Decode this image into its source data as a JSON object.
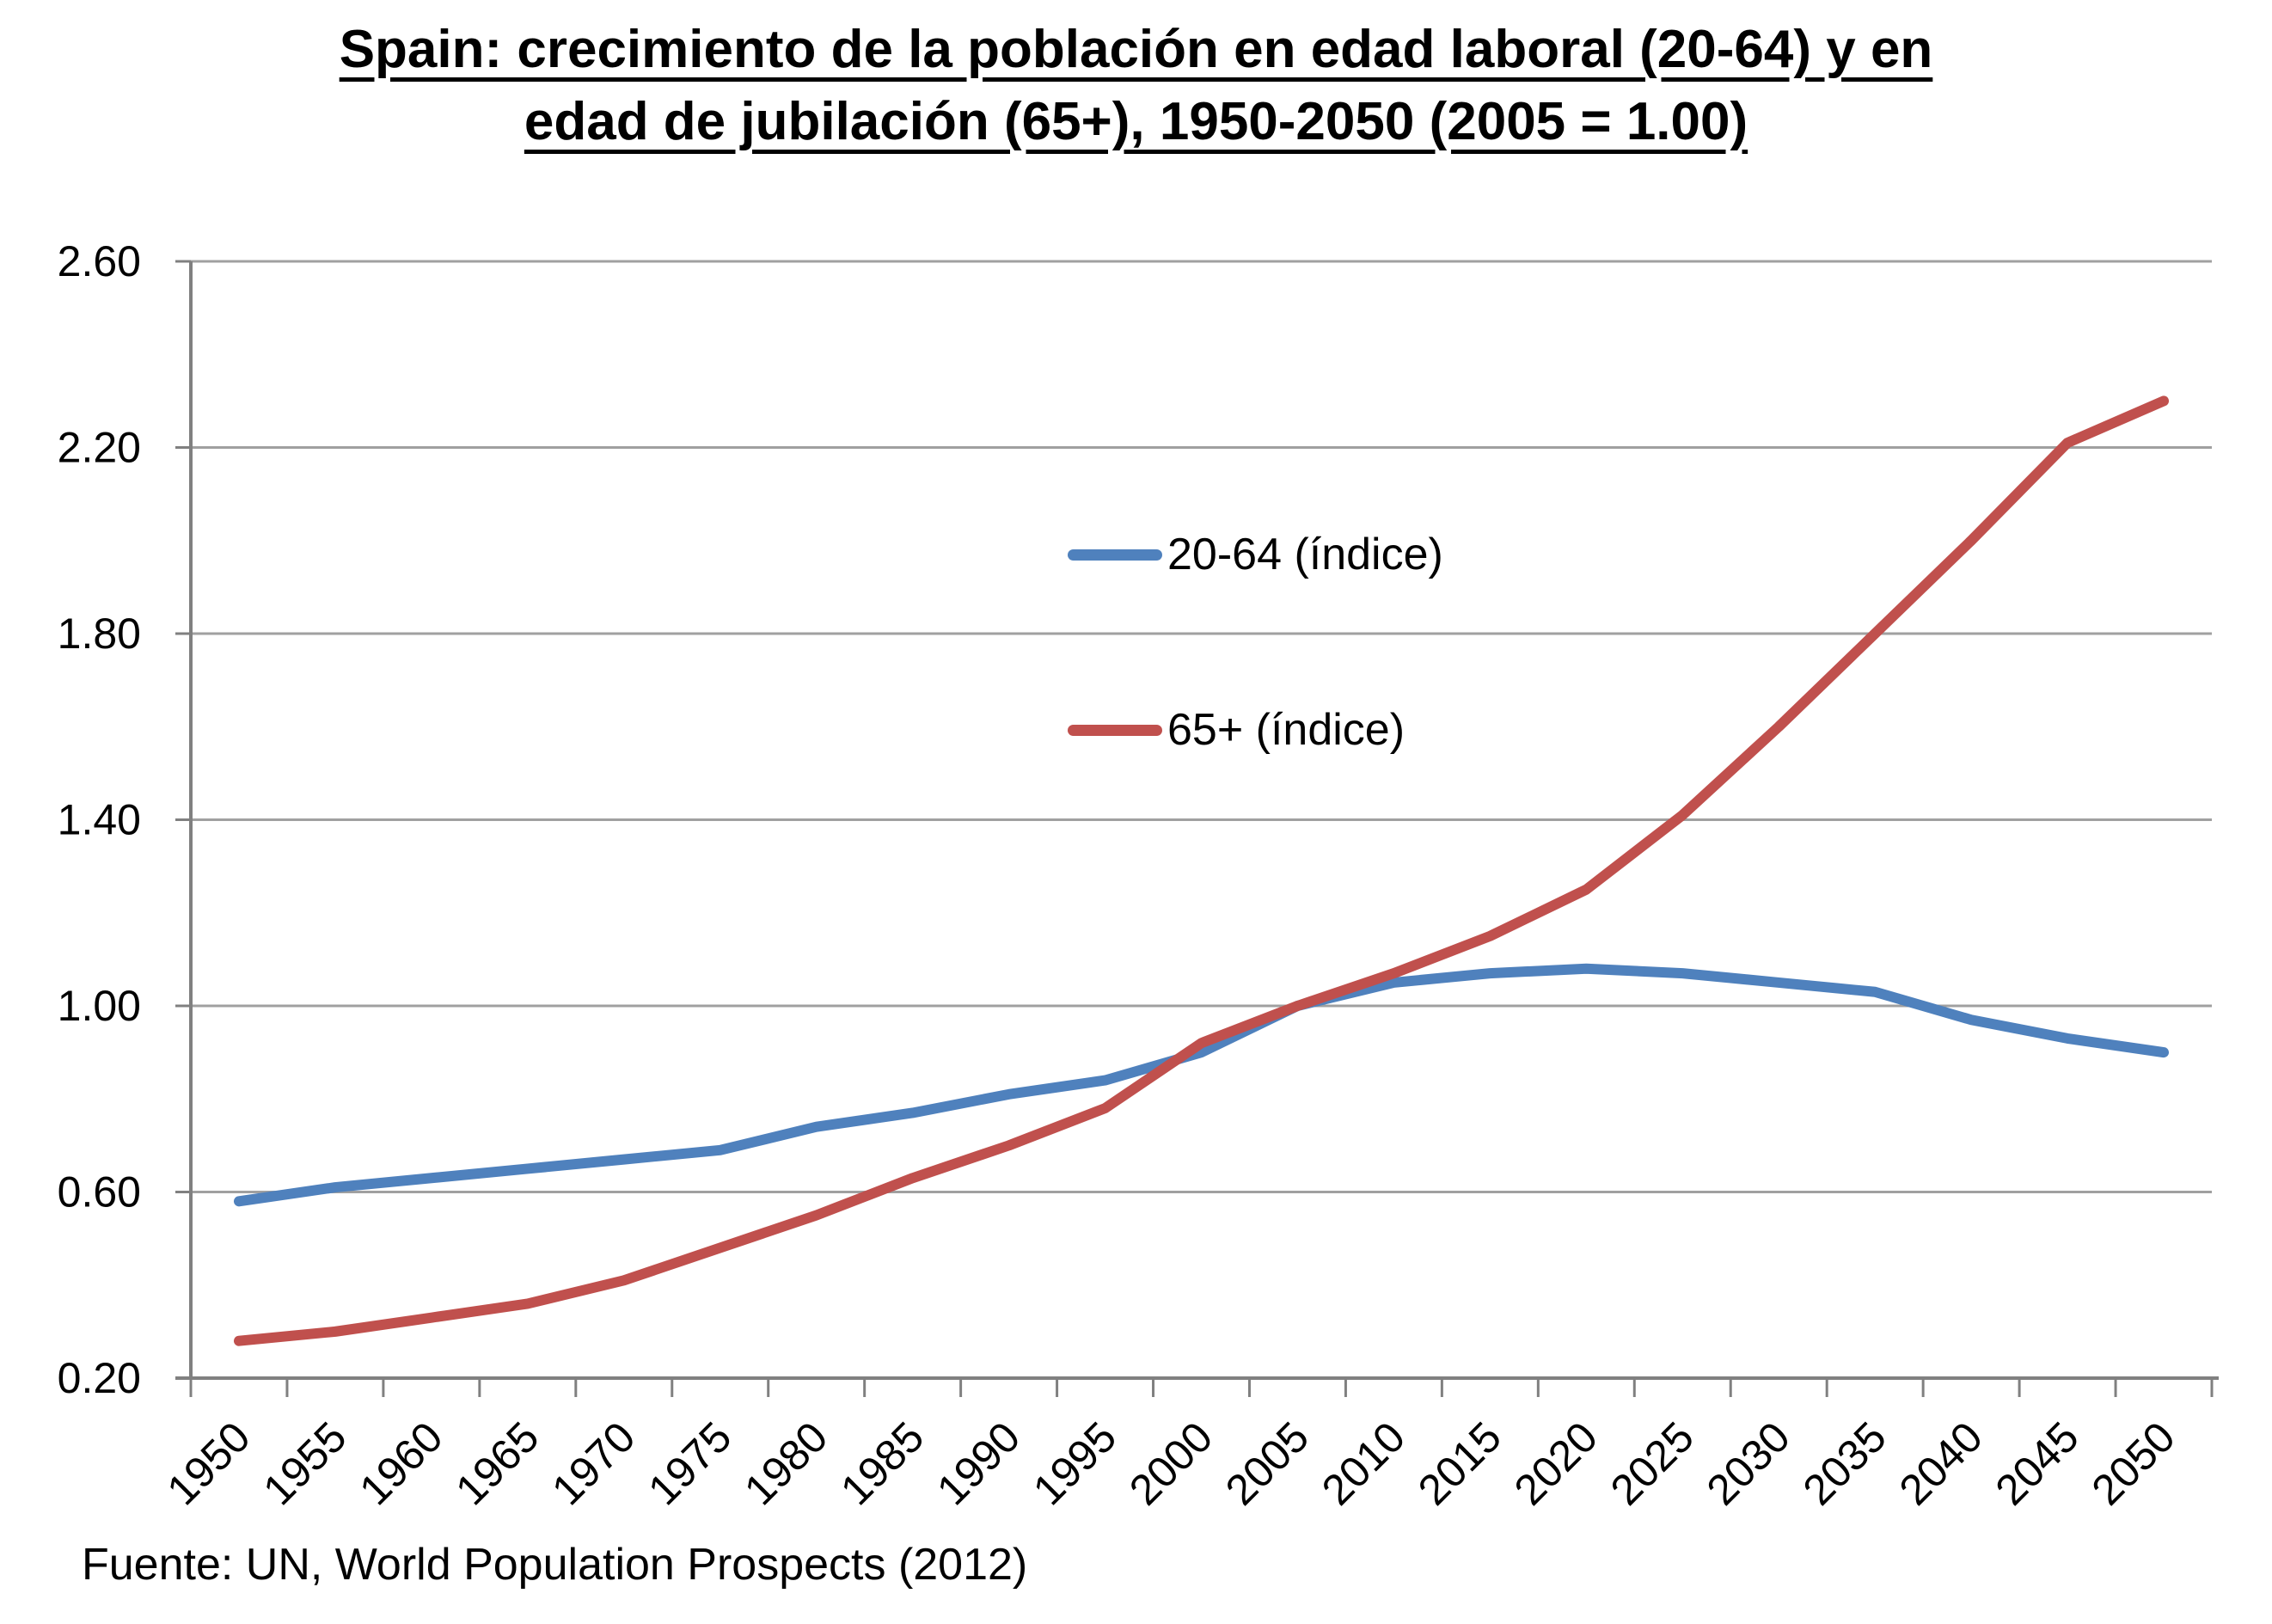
{
  "title": {
    "line1": "Spain: crecimiento de la población en edad laboral (20-64) y en",
    "line2": "edad de jubilación (65+), 1950-2050 (2005 = 1.00)"
  },
  "footer": {
    "source": "Fuente: UN, World Population Prospects (2012)"
  },
  "chart_data": {
    "type": "line",
    "title": "Spain: crecimiento de la población en edad laboral (20-64) y en edad de jubilación (65+), 1950-2050 (2005 = 1.00)",
    "categories": [
      1950,
      1955,
      1960,
      1965,
      1970,
      1975,
      1980,
      1985,
      1990,
      1995,
      2000,
      2005,
      2010,
      2015,
      2020,
      2025,
      2030,
      2035,
      2040,
      2045,
      2050
    ],
    "series": [
      {
        "name": "20-64 (índice)",
        "color": "#4F81BD",
        "values": [
          0.58,
          0.61,
          0.63,
          0.65,
          0.67,
          0.69,
          0.74,
          0.77,
          0.81,
          0.84,
          0.9,
          1.0,
          1.05,
          1.07,
          1.08,
          1.07,
          1.05,
          1.03,
          0.97,
          0.93,
          0.9
        ]
      },
      {
        "name": "65+ (índice)",
        "color": "#C0504D",
        "values": [
          0.28,
          0.3,
          0.33,
          0.36,
          0.41,
          0.48,
          0.55,
          0.63,
          0.7,
          0.78,
          0.92,
          1.0,
          1.07,
          1.15,
          1.25,
          1.41,
          1.6,
          1.8,
          2.0,
          2.21,
          2.3
        ]
      }
    ],
    "xlabel": "",
    "ylabel": "",
    "ylim": [
      0.2,
      2.6
    ],
    "yticks": [
      0.2,
      0.6,
      1.0,
      1.4,
      1.8,
      2.2,
      2.6
    ],
    "ytick_labels": [
      "0.20",
      "0.60",
      "1.00",
      "1.40",
      "1.80",
      "2.20",
      "2.60"
    ],
    "xtick_labels": [
      "1950",
      "1955",
      "1960",
      "1965",
      "1970",
      "1975",
      "1980",
      "1985",
      "1990",
      "1995",
      "2000",
      "2005",
      "2010",
      "2015",
      "2020",
      "2025",
      "2030",
      "2035",
      "2040",
      "2045",
      "2050"
    ],
    "grid": "horizontal",
    "gridline_color": "#A0A0A0",
    "axis_color": "#808080",
    "legend_position": "inside-center",
    "x_label_rotation_deg": -45
  }
}
